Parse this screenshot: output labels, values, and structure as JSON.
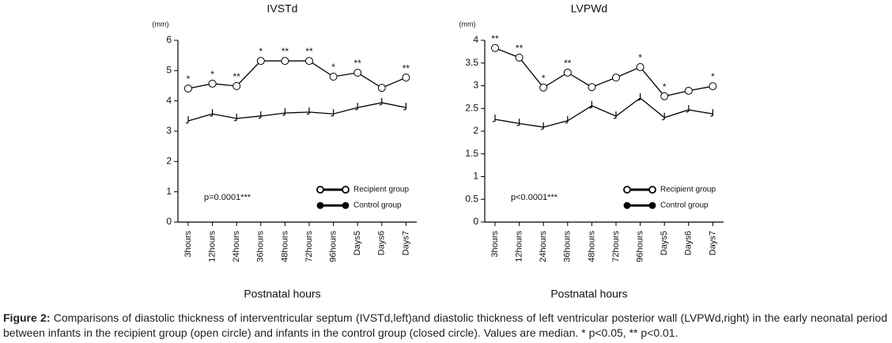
{
  "chart_data": [
    {
      "type": "line",
      "title": "IVSTd",
      "y_unit": "(mm)",
      "x_label": "Postnatal hours",
      "annotation": "p=0.0001***",
      "categories": [
        "3hours",
        "12hours",
        "24hours",
        "36hours",
        "48hours",
        "72hours",
        "96hours",
        "Days5",
        "Days6",
        "Days7"
      ],
      "series": [
        {
          "name": "Recipient group",
          "color": "#000000",
          "marker": "open",
          "values": [
            4.41,
            4.57,
            4.49,
            5.32,
            5.32,
            5.32,
            4.8,
            4.93,
            4.43,
            4.77
          ],
          "significance": [
            "*",
            "*",
            "**",
            "*",
            "**",
            "**",
            "*",
            "**",
            null,
            "**"
          ]
        },
        {
          "name": "Control group",
          "color": "#000000",
          "marker": "filled",
          "values": [
            3.34,
            3.57,
            3.42,
            3.5,
            3.6,
            3.63,
            3.57,
            3.78,
            3.94,
            3.78
          ]
        }
      ],
      "ylim": [
        0,
        6
      ],
      "yticks": [
        0,
        1,
        2,
        3,
        4,
        5,
        6
      ]
    },
    {
      "type": "line",
      "title": "LVPWd",
      "y_unit": "(mm)",
      "x_label": "Postnatal hours",
      "annotation": "p<0.0001***",
      "categories": [
        "3hours",
        "12hours",
        "24hours",
        "36hours",
        "48hours",
        "72hours",
        "96hours",
        "Days5",
        "Days6",
        "Days7"
      ],
      "series": [
        {
          "name": "Recipient group",
          "color": "#000000",
          "marker": "open",
          "values": [
            3.83,
            3.62,
            2.96,
            3.29,
            2.97,
            3.18,
            3.41,
            2.77,
            2.89,
            2.99
          ],
          "significance": [
            "**",
            "**",
            "*",
            "**",
            null,
            null,
            "*",
            "*",
            null,
            "*"
          ]
        },
        {
          "name": "Control group",
          "color": "#000000",
          "marker": "filled",
          "values": [
            2.26,
            2.17,
            2.09,
            2.23,
            2.56,
            2.33,
            2.73,
            2.3,
            2.47,
            2.38
          ]
        }
      ],
      "ylim": [
        0,
        4
      ],
      "yticks": [
        0,
        0.5,
        1,
        1.5,
        2,
        2.5,
        3,
        3.5,
        4
      ]
    }
  ],
  "caption": {
    "label": "Figure 2:",
    "text": "Comparisons of diastolic thickness of interventricular septum (IVSTd,left)and diastolic thickness of left ventricular posterior wall (LVPWd,right) in the early neonatal period between infants in the recipient group (open circle) and infants in the control group (closed circle). Values are median. * p<0.05, ** p<0.01."
  }
}
